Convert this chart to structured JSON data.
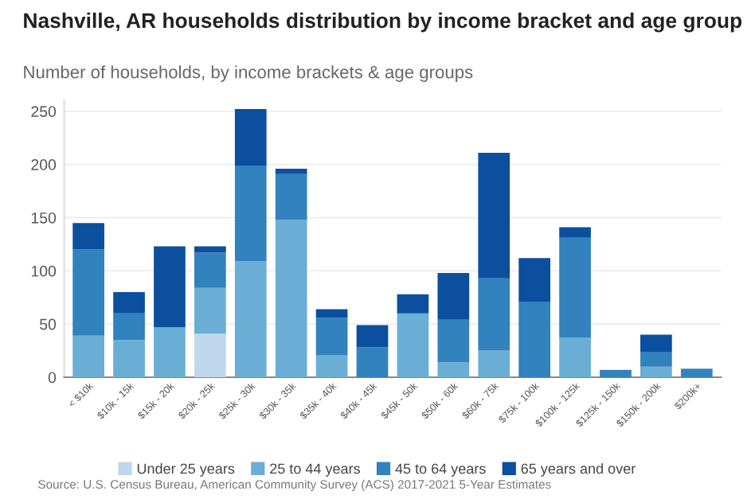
{
  "chart_data": {
    "type": "bar",
    "stacked": true,
    "title": "Nashville, AR households distribution by income bracket and age group",
    "subtitle": "Number of households, by income brackets & age groups",
    "categories": [
      "< $10k",
      "$10k - 15k",
      "$15k - 20k",
      "$20k - 25k",
      "$25k - 30k",
      "$30k - 35k",
      "$35k - 40k",
      "$40k - 45k",
      "$45k - 50k",
      "$50k - 60k",
      "$60k - 75k",
      "$75k - 100k",
      "$100k - 125k",
      "$125k - 150k",
      "$150k - 200k",
      "$200k+"
    ],
    "series": [
      {
        "name": "Under 25 years",
        "color": "#c0d8ec",
        "values": [
          0,
          0,
          0,
          41,
          0,
          0,
          0,
          0,
          0,
          0,
          0,
          0,
          0,
          0,
          0,
          0
        ]
      },
      {
        "name": "25 to 44 years",
        "color": "#6aaed6",
        "values": [
          39,
          35,
          47,
          43,
          109,
          148,
          21,
          0,
          60,
          14,
          25,
          0,
          37,
          0,
          10,
          0
        ]
      },
      {
        "name": "45 to 64 years",
        "color": "#3182bd",
        "values": [
          81,
          25,
          0,
          33,
          90,
          43,
          35,
          28,
          0,
          40,
          68,
          71,
          94,
          7,
          14,
          8
        ]
      },
      {
        "name": "65 years and over",
        "color": "#0b4f9e",
        "values": [
          25,
          20,
          76,
          6,
          53,
          5,
          8,
          21,
          18,
          44,
          118,
          41,
          10,
          0,
          16,
          0
        ]
      }
    ],
    "ylim": [
      0,
      260
    ],
    "yticks": [
      0,
      50,
      100,
      150,
      200,
      250
    ],
    "grid": "y",
    "legend": "bottom",
    "annotations": [
      "Source: U.S. Census Bureau, American Community Survey (ACS) 2017-2021 5-Year Estimates"
    ]
  }
}
